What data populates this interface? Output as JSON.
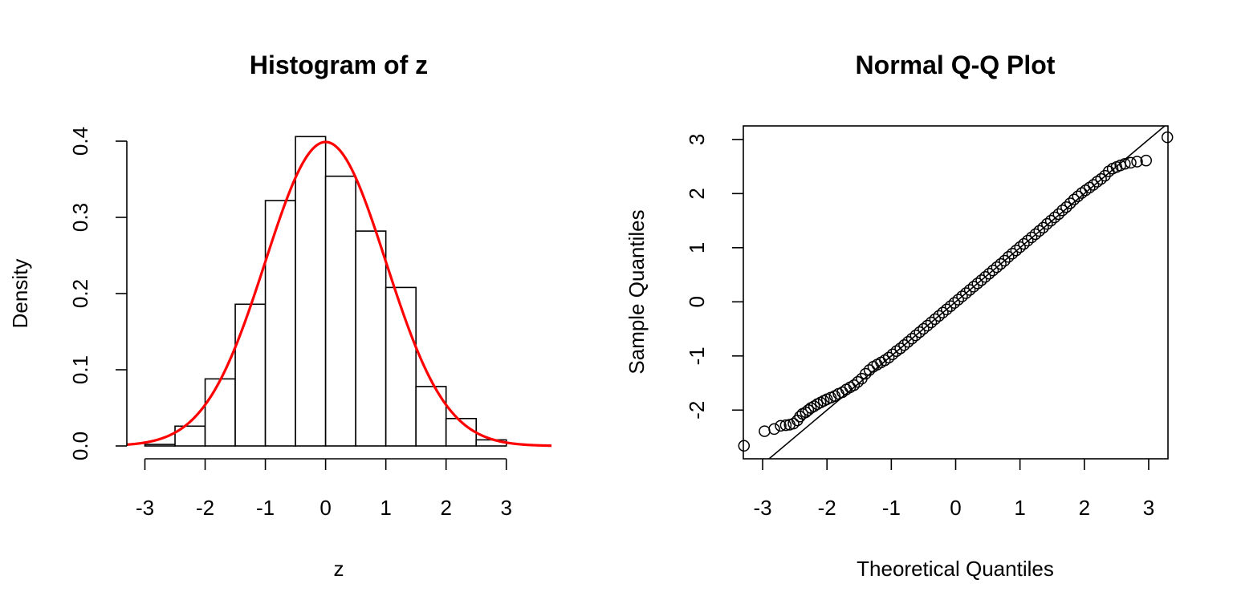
{
  "chart_data": [
    {
      "type": "histogram",
      "title": "Histogram of z",
      "xlabel": "z",
      "ylabel": "Density",
      "xlim": [
        -3.3,
        3.75
      ],
      "ylim": [
        0,
        0.42
      ],
      "xticks": [
        -3,
        -2,
        -1,
        0,
        1,
        2,
        3
      ],
      "yticks": [
        0.0,
        0.1,
        0.2,
        0.3,
        0.4
      ],
      "xtick_labels": [
        "-3",
        "-2",
        "-1",
        "0",
        "1",
        "2",
        "3"
      ],
      "ytick_labels": [
        "0.0",
        "0.1",
        "0.2",
        "0.3",
        "0.4"
      ],
      "bins": [
        {
          "x0": -3.0,
          "x1": -2.5,
          "density": 0.002
        },
        {
          "x0": -2.5,
          "x1": -2.0,
          "density": 0.026
        },
        {
          "x0": -2.0,
          "x1": -1.5,
          "density": 0.088
        },
        {
          "x0": -1.5,
          "x1": -1.0,
          "density": 0.186
        },
        {
          "x0": -1.0,
          "x1": -0.5,
          "density": 0.322
        },
        {
          "x0": -0.5,
          "x1": 0.0,
          "density": 0.406
        },
        {
          "x0": 0.0,
          "x1": 0.5,
          "density": 0.354
        },
        {
          "x0": 0.5,
          "x1": 1.0,
          "density": 0.282
        },
        {
          "x0": 1.0,
          "x1": 1.5,
          "density": 0.208
        },
        {
          "x0": 1.5,
          "x1": 2.0,
          "density": 0.078
        },
        {
          "x0": 2.0,
          "x1": 2.5,
          "density": 0.036
        },
        {
          "x0": 2.5,
          "x1": 3.0,
          "density": 0.008
        }
      ],
      "overlay": {
        "type": "normal-density",
        "mean": 0,
        "sd": 1,
        "color": "#ff0000"
      },
      "colors": {
        "bar_fill": "#ffffff",
        "bar_stroke": "#000000"
      },
      "grid": false
    },
    {
      "type": "scatter",
      "title": "Normal Q-Q Plot",
      "xlabel": "Theoretical Quantiles",
      "ylabel": "Sample Quantiles",
      "xlim": [
        -3.3,
        3.3
      ],
      "ylim": [
        -2.9,
        3.25
      ],
      "xticks": [
        -3,
        -2,
        -1,
        0,
        1,
        2,
        3
      ],
      "yticks": [
        -2,
        -1,
        0,
        1,
        2,
        3
      ],
      "xtick_labels": [
        "-3",
        "-2",
        "-1",
        "0",
        "1",
        "2",
        "3"
      ],
      "ytick_labels": [
        "-2",
        "-1",
        "0",
        "1",
        "2",
        "3"
      ],
      "points": [
        [
          -3.29,
          -2.66
        ],
        [
          -2.97,
          -2.39
        ],
        [
          -2.82,
          -2.35
        ],
        [
          -2.72,
          -2.29
        ],
        [
          -2.64,
          -2.28
        ],
        [
          -2.58,
          -2.27
        ],
        [
          -2.52,
          -2.25
        ],
        [
          -2.46,
          -2.19
        ],
        [
          -2.42,
          -2.12
        ],
        [
          -2.38,
          -2.07
        ],
        [
          -2.33,
          -2.04
        ],
        [
          -2.29,
          -2.0
        ],
        [
          -2.25,
          -1.96
        ],
        [
          -2.2,
          -1.93
        ],
        [
          -2.15,
          -1.89
        ],
        [
          -2.1,
          -1.86
        ],
        [
          -2.05,
          -1.83
        ],
        [
          -2.0,
          -1.8
        ],
        [
          -1.94,
          -1.77
        ],
        [
          -1.88,
          -1.74
        ],
        [
          -1.82,
          -1.7
        ],
        [
          -1.76,
          -1.67
        ],
        [
          -1.7,
          -1.62
        ],
        [
          -1.64,
          -1.58
        ],
        [
          -1.58,
          -1.54
        ],
        [
          -1.52,
          -1.48
        ],
        [
          -1.46,
          -1.42
        ],
        [
          -1.4,
          -1.33
        ],
        [
          -1.34,
          -1.26
        ],
        [
          -1.28,
          -1.2
        ],
        [
          -1.22,
          -1.16
        ],
        [
          -1.16,
          -1.12
        ],
        [
          -1.1,
          -1.08
        ],
        [
          -1.04,
          -1.03
        ],
        [
          -0.98,
          -0.97
        ],
        [
          -0.92,
          -0.91
        ],
        [
          -0.86,
          -0.86
        ],
        [
          -0.8,
          -0.8
        ],
        [
          -0.74,
          -0.74
        ],
        [
          -0.68,
          -0.68
        ],
        [
          -0.62,
          -0.62
        ],
        [
          -0.56,
          -0.56
        ],
        [
          -0.5,
          -0.5
        ],
        [
          -0.44,
          -0.44
        ],
        [
          -0.38,
          -0.38
        ],
        [
          -0.32,
          -0.32
        ],
        [
          -0.26,
          -0.26
        ],
        [
          -0.2,
          -0.2
        ],
        [
          -0.14,
          -0.14
        ],
        [
          -0.08,
          -0.08
        ],
        [
          -0.02,
          -0.02
        ],
        [
          0.04,
          0.04
        ],
        [
          0.1,
          0.1
        ],
        [
          0.16,
          0.16
        ],
        [
          0.22,
          0.22
        ],
        [
          0.28,
          0.28
        ],
        [
          0.34,
          0.34
        ],
        [
          0.4,
          0.4
        ],
        [
          0.46,
          0.46
        ],
        [
          0.52,
          0.52
        ],
        [
          0.58,
          0.58
        ],
        [
          0.64,
          0.64
        ],
        [
          0.7,
          0.7
        ],
        [
          0.76,
          0.76
        ],
        [
          0.82,
          0.83
        ],
        [
          0.88,
          0.89
        ],
        [
          0.94,
          0.95
        ],
        [
          1.0,
          1.01
        ],
        [
          1.06,
          1.07
        ],
        [
          1.12,
          1.13
        ],
        [
          1.18,
          1.19
        ],
        [
          1.24,
          1.25
        ],
        [
          1.3,
          1.31
        ],
        [
          1.36,
          1.37
        ],
        [
          1.42,
          1.44
        ],
        [
          1.48,
          1.5
        ],
        [
          1.54,
          1.56
        ],
        [
          1.6,
          1.62
        ],
        [
          1.66,
          1.69
        ],
        [
          1.72,
          1.75
        ],
        [
          1.78,
          1.82
        ],
        [
          1.84,
          1.89
        ],
        [
          1.9,
          1.95
        ],
        [
          1.96,
          2.01
        ],
        [
          2.02,
          2.06
        ],
        [
          2.08,
          2.11
        ],
        [
          2.14,
          2.16
        ],
        [
          2.2,
          2.22
        ],
        [
          2.26,
          2.27
        ],
        [
          2.32,
          2.33
        ],
        [
          2.38,
          2.41
        ],
        [
          2.44,
          2.46
        ],
        [
          2.5,
          2.49
        ],
        [
          2.56,
          2.52
        ],
        [
          2.63,
          2.55
        ],
        [
          2.72,
          2.57
        ],
        [
          2.82,
          2.59
        ],
        [
          2.96,
          2.61
        ],
        [
          3.29,
          3.04
        ]
      ],
      "reference_line": {
        "intercept": 0.0,
        "slope": 1.0
      },
      "marker": "open-circle",
      "colors": {
        "points": "#000000",
        "line": "#000000"
      },
      "grid": false
    }
  ]
}
